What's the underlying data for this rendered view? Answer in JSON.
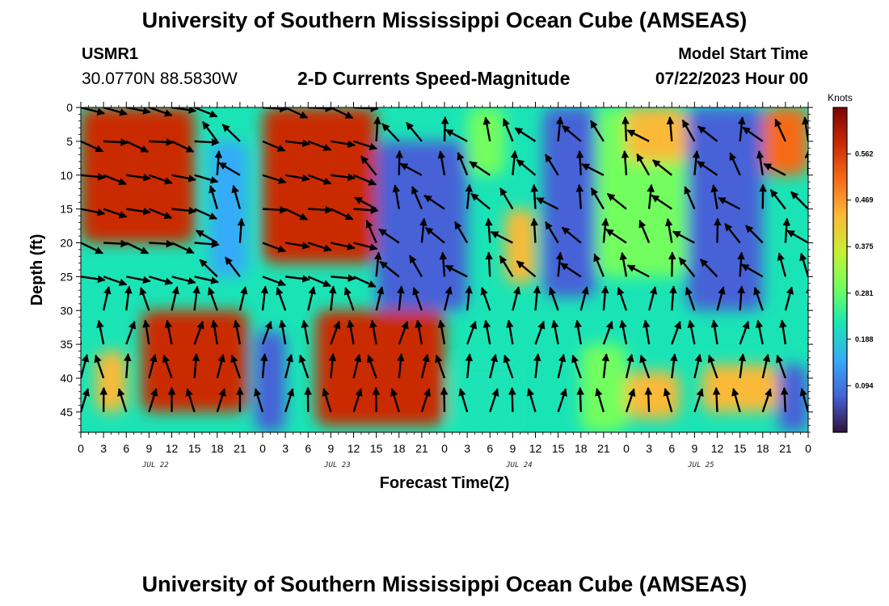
{
  "header": {
    "title": "University of Southern Mississippi Ocean Cube (AMSEAS)",
    "station_id": "USMR1",
    "coordinates": "30.0770N  88.5830W",
    "subtitle": "2-D Currents Speed-Magnitude",
    "model_start_label": "Model Start Time",
    "model_start_value": "07/22/2023 Hour 00"
  },
  "footer": {
    "title": "University of Southern Mississippi Ocean Cube (AMSEAS)"
  },
  "chart_data": {
    "type": "heatmap",
    "title": "2-D Currents Speed-Magnitude",
    "xlabel": "Forecast Time(Z)",
    "ylabel": "Depth (ft)",
    "x_range_hours": [
      0,
      96
    ],
    "y_range_ft": [
      0,
      48
    ],
    "y_ticks": [
      0,
      5,
      10,
      15,
      20,
      25,
      30,
      35,
      40,
      45
    ],
    "x_tick_labels": [
      "0",
      "3",
      "6",
      "9",
      "12",
      "15",
      "18",
      "21",
      "0",
      "3",
      "6",
      "9",
      "12",
      "15",
      "18",
      "21",
      "0",
      "3",
      "6",
      "9",
      "12",
      "15",
      "18",
      "21",
      "0",
      "3",
      "6",
      "9",
      "12",
      "15",
      "18",
      "21",
      "0"
    ],
    "date_labels": [
      {
        "label": "JUL 22",
        "hour": 9
      },
      {
        "label": "JUL 23",
        "hour": 33
      },
      {
        "label": "JUL 24",
        "hour": 57
      },
      {
        "label": "JUL 25",
        "hour": 81
      }
    ],
    "colorbar": {
      "unit": "Knots",
      "ticks": [
        "0.562",
        "0.469",
        "0.375",
        "0.281",
        "0.188",
        "0.094"
      ],
      "tick_values": [
        0.562,
        0.469,
        0.375,
        0.281,
        0.188,
        0.094
      ],
      "range": [
        0,
        0.656
      ],
      "colors": [
        "#30123b",
        "#4662d7",
        "#36aaf9",
        "#1ae4b6",
        "#72fe5e",
        "#c7ef34",
        "#faba39",
        "#f66b19",
        "#ca2a04",
        "#7a0403"
      ]
    },
    "speed_regions": [
      {
        "hours": [
          0,
          15
        ],
        "depth_ft": [
          0,
          20
        ],
        "level": "high",
        "knots": 0.56
      },
      {
        "hours": [
          17,
          22
        ],
        "depth_ft": [
          5,
          25
        ],
        "level": "low",
        "knots": 0.12
      },
      {
        "hours": [
          24,
          39
        ],
        "depth_ft": [
          0,
          23
        ],
        "level": "high",
        "knots": 0.58
      },
      {
        "hours": [
          39,
          51
        ],
        "depth_ft": [
          5,
          30
        ],
        "level": "low",
        "knots": 0.1
      },
      {
        "hours": [
          51,
          56
        ],
        "depth_ft": [
          0,
          10
        ],
        "level": "mid",
        "knots": 0.3
      },
      {
        "hours": [
          56,
          60
        ],
        "depth_ft": [
          15,
          26
        ],
        "level": "high",
        "knots": 0.45
      },
      {
        "hours": [
          61,
          68
        ],
        "depth_ft": [
          0,
          28
        ],
        "level": "low",
        "knots": 0.1
      },
      {
        "hours": [
          68,
          80
        ],
        "depth_ft": [
          0,
          25
        ],
        "level": "mixed",
        "knots": 0.3
      },
      {
        "hours": [
          72,
          80
        ],
        "depth_ft": [
          0,
          8
        ],
        "level": "high",
        "knots": 0.45
      },
      {
        "hours": [
          80,
          90
        ],
        "depth_ft": [
          0,
          30
        ],
        "level": "low",
        "knots": 0.08
      },
      {
        "hours": [
          90,
          96
        ],
        "depth_ft": [
          0,
          10
        ],
        "level": "high",
        "knots": 0.48
      },
      {
        "hours": [
          8,
          22
        ],
        "depth_ft": [
          30,
          45
        ],
        "level": "high",
        "knots": 0.56
      },
      {
        "hours": [
          2,
          6
        ],
        "depth_ft": [
          36,
          45
        ],
        "level": "high",
        "knots": 0.45
      },
      {
        "hours": [
          23,
          27
        ],
        "depth_ft": [
          33,
          48
        ],
        "level": "low",
        "knots": 0.1
      },
      {
        "hours": [
          31,
          48
        ],
        "depth_ft": [
          30,
          47
        ],
        "level": "high",
        "knots": 0.58
      },
      {
        "hours": [
          49,
          58
        ],
        "depth_ft": [
          38,
          48
        ],
        "level": "mixed",
        "knots": 0.25
      },
      {
        "hours": [
          66,
          72
        ],
        "depth_ft": [
          35,
          48
        ],
        "level": "mid",
        "knots": 0.28
      },
      {
        "hours": [
          72,
          79
        ],
        "depth_ft": [
          39,
          46
        ],
        "level": "high",
        "knots": 0.42
      },
      {
        "hours": [
          82,
          92
        ],
        "depth_ft": [
          38,
          45
        ],
        "level": "high",
        "knots": 0.45
      },
      {
        "hours": [
          92,
          96
        ],
        "depth_ft": [
          38,
          48
        ],
        "level": "low",
        "knots": 0.1
      }
    ]
  }
}
